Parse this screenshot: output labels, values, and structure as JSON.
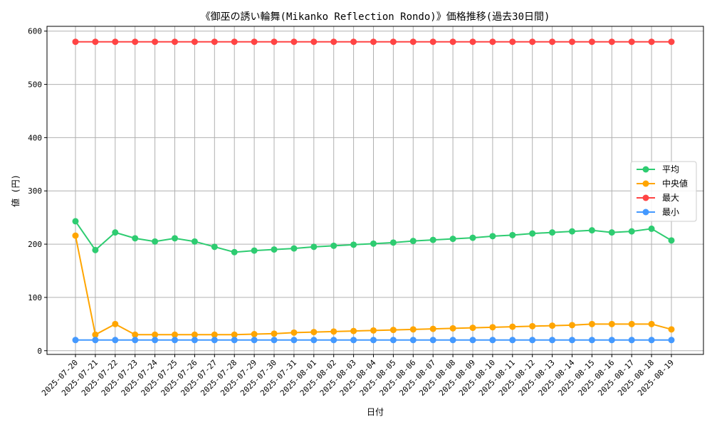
{
  "chart_data": {
    "type": "line",
    "title": "《御巫の誘い輪舞(Mikanko Reflection Rondo)》価格推移(過去30日間)",
    "xlabel": "日付",
    "ylabel": "値 (円)",
    "ylim": [
      -7,
      609
    ],
    "yticks": [
      0,
      100,
      200,
      300,
      400,
      500,
      600
    ],
    "grid": true,
    "legend_position": "center-right",
    "categories": [
      "2025-07-20",
      "2025-07-21",
      "2025-07-22",
      "2025-07-23",
      "2025-07-24",
      "2025-07-25",
      "2025-07-26",
      "2025-07-27",
      "2025-07-28",
      "2025-07-29",
      "2025-07-30",
      "2025-07-31",
      "2025-08-01",
      "2025-08-02",
      "2025-08-03",
      "2025-08-04",
      "2025-08-05",
      "2025-08-06",
      "2025-08-07",
      "2025-08-08",
      "2025-08-09",
      "2025-08-10",
      "2025-08-11",
      "2025-08-12",
      "2025-08-13",
      "2025-08-14",
      "2025-08-15",
      "2025-08-16",
      "2025-08-17",
      "2025-08-18",
      "2025-08-19"
    ],
    "series": [
      {
        "name": "平均",
        "color": "#2ecc71",
        "values": [
          243,
          189,
          222,
          211,
          205,
          211,
          205,
          195,
          185,
          188,
          190,
          192,
          195,
          197,
          199,
          201,
          203,
          206,
          208,
          210,
          212,
          215,
          217,
          220,
          222,
          224,
          226,
          222,
          224,
          229,
          207
        ]
      },
      {
        "name": "中央値",
        "color": "#ffa500",
        "values": [
          216,
          30,
          50,
          30,
          30,
          30,
          30,
          30,
          30,
          31,
          32,
          34,
          35,
          36,
          37,
          38,
          39,
          40,
          41,
          42,
          43,
          44,
          45,
          46,
          47,
          48,
          50,
          50,
          50,
          50,
          40
        ]
      },
      {
        "name": "最大",
        "color": "#ff4444",
        "values": [
          580,
          580,
          580,
          580,
          580,
          580,
          580,
          580,
          580,
          580,
          580,
          580,
          580,
          580,
          580,
          580,
          580,
          580,
          580,
          580,
          580,
          580,
          580,
          580,
          580,
          580,
          580,
          580,
          580,
          580,
          580
        ]
      },
      {
        "name": "最小",
        "color": "#4499ff",
        "values": [
          20,
          20,
          20,
          20,
          20,
          20,
          20,
          20,
          20,
          20,
          20,
          20,
          20,
          20,
          20,
          20,
          20,
          20,
          20,
          20,
          20,
          20,
          20,
          20,
          20,
          20,
          20,
          20,
          20,
          20,
          20
        ]
      }
    ]
  }
}
